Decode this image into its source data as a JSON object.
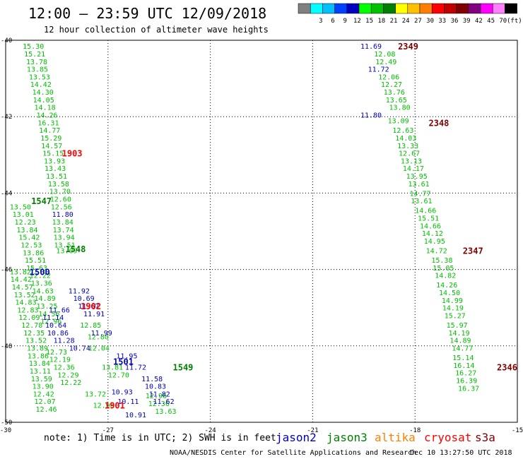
{
  "header": {
    "title": "12:00 – 23:59 UTC 12/09/2018",
    "subtitle": "12 hour collection of altimeter wave heights"
  },
  "scale": {
    "unit": "(ft)",
    "bins": [
      {
        "label": "",
        "color": "#808080"
      },
      {
        "label": "3",
        "color": "#00ffff"
      },
      {
        "label": "6",
        "color": "#00bfff"
      },
      {
        "label": "9",
        "color": "#0040ff"
      },
      {
        "label": "12",
        "color": "#0000c0"
      },
      {
        "label": "15",
        "color": "#00ff00"
      },
      {
        "label": "18",
        "color": "#00c000"
      },
      {
        "label": "21",
        "color": "#008000"
      },
      {
        "label": "24",
        "color": "#ffff00"
      },
      {
        "label": "27",
        "color": "#ffc000"
      },
      {
        "label": "30",
        "color": "#ff8000"
      },
      {
        "label": "33",
        "color": "#ff0000"
      },
      {
        "label": "36",
        "color": "#c00000"
      },
      {
        "label": "39",
        "color": "#800000"
      },
      {
        "label": "42",
        "color": "#800080"
      },
      {
        "label": "45",
        "color": "#ff00ff"
      },
      {
        "label": "70",
        "color": "#ff80ff"
      },
      {
        "label": "",
        "color": "#000000"
      }
    ]
  },
  "footer": {
    "note": "note: 1) Time is in UTC; 2) SWH is in feet",
    "satellites": [
      {
        "name": "jason2",
        "color": "#0000c0"
      },
      {
        "name": "jason3",
        "color": "#008000"
      },
      {
        "name": "altika",
        "color": "#ff8000"
      },
      {
        "name": "cryosat",
        "color": "#ff0000"
      },
      {
        "name": "s3a",
        "color": "#800000"
      }
    ],
    "credit": "NOAA/NESDIS Center for Satellite Applications and Research",
    "timestamp": "Dec 10 13:27:50 UTC 2018"
  },
  "chart_data": {
    "type": "scatter",
    "title": "12:00 – 23:59 UTC 12/09/2018",
    "subtitle": "12 hour collection of altimeter wave heights",
    "xlim": [
      -30,
      -15
    ],
    "ylim": [
      -50,
      -40
    ],
    "x_ticks": [
      -30,
      -27,
      -24,
      -21,
      -18,
      -15
    ],
    "x_tick_labels": [
      "-30",
      "-27",
      "-24",
      "-21",
      "-18",
      "-15"
    ],
    "y_ticks": [
      -40,
      -42,
      -44,
      -46,
      -48,
      -50
    ],
    "y_tick_labels": [
      "-40",
      "-42",
      "-44",
      "-46",
      "-48",
      "-50"
    ],
    "grid": true,
    "series": [
      {
        "name": "jason3",
        "color": "#00c000",
        "points": [
          [
            -29.5,
            -40.15,
            "15.30"
          ],
          [
            -29.46,
            -40.35,
            "15.21"
          ],
          [
            -29.4,
            -40.55,
            "13.78"
          ],
          [
            -29.38,
            -40.75,
            "13.85"
          ],
          [
            -29.32,
            -40.95,
            "13.53"
          ],
          [
            -29.28,
            -41.15,
            "14.42"
          ],
          [
            -29.22,
            -41.35,
            "14.30"
          ],
          [
            -29.2,
            -41.55,
            "14.05"
          ],
          [
            -29.16,
            -41.75,
            "14.18"
          ],
          [
            -29.1,
            -41.95,
            "14.26"
          ],
          [
            -29.06,
            -42.15,
            "16.31"
          ],
          [
            -29.02,
            -42.35,
            "14.77"
          ],
          [
            -28.98,
            -42.55,
            "15.29"
          ],
          [
            -28.96,
            -42.75,
            "14.57"
          ],
          [
            -28.92,
            -42.95,
            "15.15"
          ],
          [
            -28.88,
            -43.15,
            "13.93"
          ],
          [
            -28.86,
            -43.35,
            "13.43"
          ],
          [
            -28.82,
            -43.55,
            "13.51"
          ],
          [
            -28.76,
            -43.75,
            "13.58"
          ],
          [
            -28.72,
            -43.95,
            "13.70"
          ],
          [
            -28.7,
            -44.15,
            "12.60"
          ],
          [
            -28.68,
            -44.35,
            "12.56"
          ],
          [
            -28.64,
            -44.75,
            "13.84"
          ],
          [
            -28.62,
            -44.95,
            "13.74"
          ],
          [
            -28.6,
            -45.15,
            "13.94"
          ],
          [
            -28.58,
            -45.35,
            "13.51"
          ],
          [
            -28.52,
            -45.5,
            "13.09"
          ]
        ]
      },
      {
        "name": "jason3",
        "color": "#00c000",
        "points": [
          [
            -29.88,
            -44.35,
            "13.50"
          ],
          [
            -29.8,
            -44.55,
            "13.01"
          ],
          [
            -29.74,
            -44.75,
            "12.23"
          ],
          [
            -29.68,
            -44.95,
            "13.84"
          ],
          [
            -29.62,
            -45.15,
            "15.42"
          ],
          [
            -29.56,
            -45.35,
            "12.53"
          ],
          [
            -29.5,
            -45.55,
            "13.86"
          ],
          [
            -29.44,
            -45.75,
            "15.51"
          ],
          [
            -29.4,
            -45.95,
            "15.63"
          ],
          [
            -29.3,
            -46.15,
            "12.22"
          ],
          [
            -29.26,
            -46.35,
            "13.36"
          ],
          [
            -29.22,
            -46.55,
            "14.63"
          ],
          [
            -29.16,
            -46.75,
            "14.89"
          ],
          [
            -29.1,
            -46.95,
            "13.25"
          ],
          [
            -29.04,
            -47.15,
            "14.56"
          ],
          [
            -28.98,
            -47.35,
            "12.96"
          ]
        ]
      },
      {
        "name": "jason3",
        "color": "#00c000",
        "points": [
          [
            -29.88,
            -46.05,
            "13.82"
          ],
          [
            -29.86,
            -46.25,
            "14.42"
          ],
          [
            -29.82,
            -46.45,
            "14.57"
          ],
          [
            -29.76,
            -46.65,
            "13.52"
          ],
          [
            -29.72,
            -46.85,
            "14.83"
          ],
          [
            -29.66,
            -47.05,
            "12.83"
          ],
          [
            -29.62,
            -47.25,
            "12.09"
          ],
          [
            -29.54,
            -47.45,
            "12.78"
          ],
          [
            -29.48,
            -47.65,
            "12.35"
          ],
          [
            -29.42,
            -47.85,
            "13.52"
          ],
          [
            -29.38,
            -48.05,
            "13.89"
          ],
          [
            -29.36,
            -48.25,
            "13.86"
          ],
          [
            -29.32,
            -48.45,
            "13.84"
          ],
          [
            -29.3,
            -48.65,
            "13.11"
          ],
          [
            -29.26,
            -48.85,
            "13.59"
          ],
          [
            -29.22,
            -49.05,
            "13.90"
          ],
          [
            -29.2,
            -49.25,
            "12.42"
          ],
          [
            -29.16,
            -49.45,
            "12.07"
          ],
          [
            -29.12,
            -49.65,
            "12.46"
          ]
        ]
      },
      {
        "name": "jason3",
        "color": "#00c000",
        "points": [
          [
            -28.82,
            -48.15,
            "12.73"
          ],
          [
            -28.72,
            -48.35,
            "12.19"
          ],
          [
            -28.6,
            -48.55,
            "12.36"
          ],
          [
            -28.48,
            -48.75,
            "12.29"
          ],
          [
            -28.4,
            -48.95,
            "12.22"
          ],
          [
            -27.82,
            -47.45,
            "12.85"
          ],
          [
            -27.6,
            -47.75,
            "12.80"
          ],
          [
            -27.58,
            -48.05,
            "12.04"
          ],
          [
            -27.18,
            -48.55,
            "13.81"
          ],
          [
            -27.0,
            -48.75,
            "12.70"
          ],
          [
            -27.68,
            -49.25,
            "13.72"
          ],
          [
            -27.44,
            -49.55,
            "12.96"
          ],
          [
            -25.9,
            -49.3,
            "12.96"
          ],
          [
            -25.82,
            -49.5,
            "12.36"
          ],
          [
            -25.62,
            -49.7,
            "13.63"
          ]
        ]
      },
      {
        "name": "jason3",
        "color": "#00c000",
        "points": [
          [
            -19.2,
            -40.35,
            "12.08"
          ],
          [
            -19.16,
            -40.55,
            "12.49"
          ],
          [
            -19.08,
            -40.95,
            "12.06"
          ],
          [
            -19.0,
            -41.15,
            "12.27"
          ],
          [
            -18.92,
            -41.35,
            "13.76"
          ],
          [
            -18.86,
            -41.55,
            "13.65"
          ],
          [
            -18.76,
            -41.75,
            "13.80"
          ],
          [
            -18.8,
            -42.1,
            "13.09"
          ],
          [
            -18.66,
            -42.35,
            "12.63"
          ],
          [
            -18.58,
            -42.55,
            "14.03"
          ],
          [
            -18.52,
            -42.75,
            "13.33"
          ],
          [
            -18.48,
            -42.95,
            "12.67"
          ],
          [
            -18.42,
            -43.15,
            "13.13"
          ],
          [
            -18.36,
            -43.35,
            "14.17"
          ],
          [
            -18.26,
            -43.55,
            "13.95"
          ],
          [
            -18.2,
            -43.75,
            "13.61"
          ],
          [
            -18.16,
            -44.0,
            "14.77"
          ],
          [
            -18.12,
            -44.2,
            "13.61"
          ],
          [
            -18.0,
            -44.45,
            "14.66"
          ],
          [
            -17.92,
            -44.65,
            "15.51"
          ],
          [
            -17.86,
            -44.85,
            "14.66"
          ],
          [
            -17.8,
            -45.05,
            "14.12"
          ],
          [
            -17.74,
            -45.25,
            "14.95"
          ],
          [
            -17.68,
            -45.5,
            "14.72"
          ],
          [
            -17.52,
            -45.75,
            "15.38"
          ],
          [
            -17.48,
            -45.95,
            "15.05"
          ],
          [
            -17.42,
            -46.15,
            "14.82"
          ],
          [
            -17.38,
            -46.4,
            "14.26"
          ],
          [
            -17.3,
            -46.6,
            "14.50"
          ],
          [
            -17.22,
            -46.8,
            "14.99"
          ],
          [
            -17.2,
            -47.0,
            "14.19"
          ],
          [
            -17.14,
            -47.2,
            "15.27"
          ],
          [
            -17.08,
            -47.45,
            "15.97"
          ],
          [
            -17.02,
            -47.65,
            "14.19"
          ],
          [
            -16.98,
            -47.85,
            "14.89"
          ],
          [
            -16.92,
            -48.05,
            "14.77"
          ],
          [
            -16.9,
            -48.3,
            "15.14"
          ],
          [
            -16.88,
            -48.5,
            "16.14"
          ],
          [
            -16.82,
            -48.7,
            "16.27"
          ],
          [
            -16.8,
            -48.9,
            "16.39"
          ],
          [
            -16.74,
            -49.1,
            "16.37"
          ]
        ]
      },
      {
        "name": "jason2",
        "color": "#0000c0",
        "points": [
          [
            -28.64,
            -44.55,
            "11.80"
          ],
          [
            -28.16,
            -46.55,
            "11.92"
          ],
          [
            -28.02,
            -46.75,
            "10.69"
          ],
          [
            -27.88,
            -46.95,
            "11.67"
          ],
          [
            -27.72,
            -47.15,
            "11.91"
          ],
          [
            -27.5,
            -47.65,
            "11.99"
          ],
          [
            -26.76,
            -48.25,
            "11.95"
          ],
          [
            -26.5,
            -48.55,
            "11.72"
          ],
          [
            -26.02,
            -48.85,
            "11.58"
          ],
          [
            -25.92,
            -49.05,
            "10.83"
          ],
          [
            -25.8,
            -49.25,
            "11.82"
          ],
          [
            -25.68,
            -49.45,
            "11.62"
          ],
          [
            -28.74,
            -47.05,
            "11.66"
          ],
          [
            -28.92,
            -47.25,
            "11.14"
          ],
          [
            -28.84,
            -47.45,
            "10.64"
          ],
          [
            -28.78,
            -47.65,
            "10.86"
          ],
          [
            -28.6,
            -47.85,
            "11.28"
          ],
          [
            -28.14,
            -48.05,
            "10.74"
          ],
          [
            -26.9,
            -49.2,
            "10.93"
          ],
          [
            -26.72,
            -49.45,
            "10.11"
          ],
          [
            -26.5,
            -49.8,
            "10.91"
          ],
          [
            -19.6,
            -40.15,
            "11.69"
          ],
          [
            -19.38,
            -40.75,
            "11.72"
          ],
          [
            -19.6,
            -41.95,
            "11.80"
          ]
        ]
      }
    ],
    "track_labels": [
      {
        "label": "2349",
        "x": -18.5,
        "y": -40.15,
        "color": "#800000"
      },
      {
        "label": "2348",
        "x": -17.6,
        "y": -42.15,
        "color": "#800000"
      },
      {
        "label": "2347",
        "x": -16.6,
        "y": -45.5,
        "color": "#800000"
      },
      {
        "label": "2346",
        "x": -15.6,
        "y": -48.55,
        "color": "#800000"
      },
      {
        "label": "1903",
        "x": -28.35,
        "y": -42.95,
        "color": "#ff0000"
      },
      {
        "label": "1902",
        "x": -27.8,
        "y": -46.95,
        "color": "#ff0000"
      },
      {
        "label": "1901",
        "x": -27.1,
        "y": -49.55,
        "color": "#ff0000"
      },
      {
        "label": "1547",
        "x": -29.25,
        "y": -44.2,
        "color": "#008000"
      },
      {
        "label": "1548",
        "x": -28.25,
        "y": -45.45,
        "color": "#008000"
      },
      {
        "label": "1549",
        "x": -25.1,
        "y": -48.55,
        "color": "#008000"
      },
      {
        "label": "1500",
        "x": -29.3,
        "y": -46.05,
        "color": "#0000c0"
      },
      {
        "label": "1501",
        "x": -26.85,
        "y": -48.4,
        "color": "#0000c0"
      }
    ]
  }
}
